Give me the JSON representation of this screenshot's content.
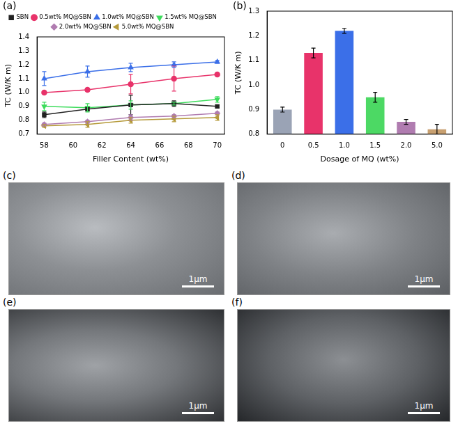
{
  "chart_data": [
    {
      "type": "line",
      "panel": "(a)",
      "x_label": "Filler Content (wt%)",
      "y_label": "TC (W/K m)",
      "x": [
        58,
        61,
        64,
        67,
        70
      ],
      "xlim": [
        57.5,
        70.5
      ],
      "xticks": [
        58,
        60,
        62,
        64,
        66,
        68,
        70
      ],
      "ylim": [
        0.7,
        1.4
      ],
      "yticks": [
        0.7,
        0.8,
        0.9,
        {
          "value": 1,
          "label": "1.0"
        },
        1.1,
        1.2,
        1.3,
        1.4
      ],
      "grid": false,
      "legend": "top",
      "series": [
        {
          "name": "SBN",
          "color": "#222222",
          "marker": "square",
          "values": [
            0.84,
            0.88,
            0.91,
            0.92,
            0.9
          ],
          "errors": [
            0.02,
            0.01,
            0.07,
            0.02,
            0.01
          ]
        },
        {
          "name": "0.5wt% MQ@SBN",
          "color": "#e8336a",
          "marker": "circle",
          "values": [
            1.0,
            1.02,
            1.06,
            1.1,
            1.13
          ],
          "errors": [
            0.01,
            0.01,
            0.07,
            0.09,
            0.01
          ]
        },
        {
          "name": "1.0wt% MQ@SBN",
          "color": "#3b6fe8",
          "marker": "triangle-up",
          "values": [
            1.1,
            1.15,
            1.18,
            1.2,
            1.22
          ],
          "errors": [
            0.05,
            0.04,
            0.03,
            0.02,
            0.01
          ]
        },
        {
          "name": "1.5wt% MQ@SBN",
          "color": "#3ddc5c",
          "marker": "triangle-down",
          "values": [
            0.9,
            0.89,
            0.91,
            0.92,
            0.95
          ],
          "errors": [
            0.03,
            0.03,
            0.03,
            0.01,
            0.02
          ]
        },
        {
          "name": "2.0wt% MQ@SBN",
          "color": "#b07cb0",
          "marker": "diamond",
          "values": [
            0.77,
            0.79,
            0.82,
            0.83,
            0.85
          ],
          "errors": [
            0.01,
            0.01,
            0.02,
            0.01,
            0.01
          ]
        },
        {
          "name": "5.0wt% MQ@SBN",
          "color": "#b59a3a",
          "marker": "triangle-left",
          "values": [
            0.76,
            0.77,
            0.8,
            0.81,
            0.82
          ],
          "errors": [
            0.01,
            0.02,
            0.02,
            0.02,
            0.02
          ]
        }
      ]
    },
    {
      "type": "bar",
      "panel": "(b)",
      "x_label": "Dosage of MQ (wt%)",
      "y_label": "TC (W/K m)",
      "categories": [
        "0",
        "0.5",
        "1.0",
        "1.5",
        "2.0",
        "5.0"
      ],
      "values": [
        0.9,
        1.13,
        1.22,
        0.95,
        0.85,
        0.82
      ],
      "errors": [
        0.01,
        0.02,
        0.01,
        0.02,
        0.01,
        0.02
      ],
      "colors": [
        "#9aa3b5",
        "#e8336a",
        "#3b6fe8",
        "#4cd964",
        "#b07cb0",
        "#c8a070"
      ],
      "ylim": [
        0.8,
        1.3
      ],
      "yticks": [
        0.8,
        0.9,
        {
          "value": 1,
          "label": "1.0"
        },
        1.1,
        1.2,
        1.3
      ],
      "grid": false
    }
  ],
  "images": [
    {
      "panel": "(c)",
      "scale_bar": "1μm"
    },
    {
      "panel": "(d)",
      "scale_bar": "1μm"
    },
    {
      "panel": "(e)",
      "scale_bar": "1μm"
    },
    {
      "panel": "(f)",
      "scale_bar": "1μm"
    }
  ]
}
